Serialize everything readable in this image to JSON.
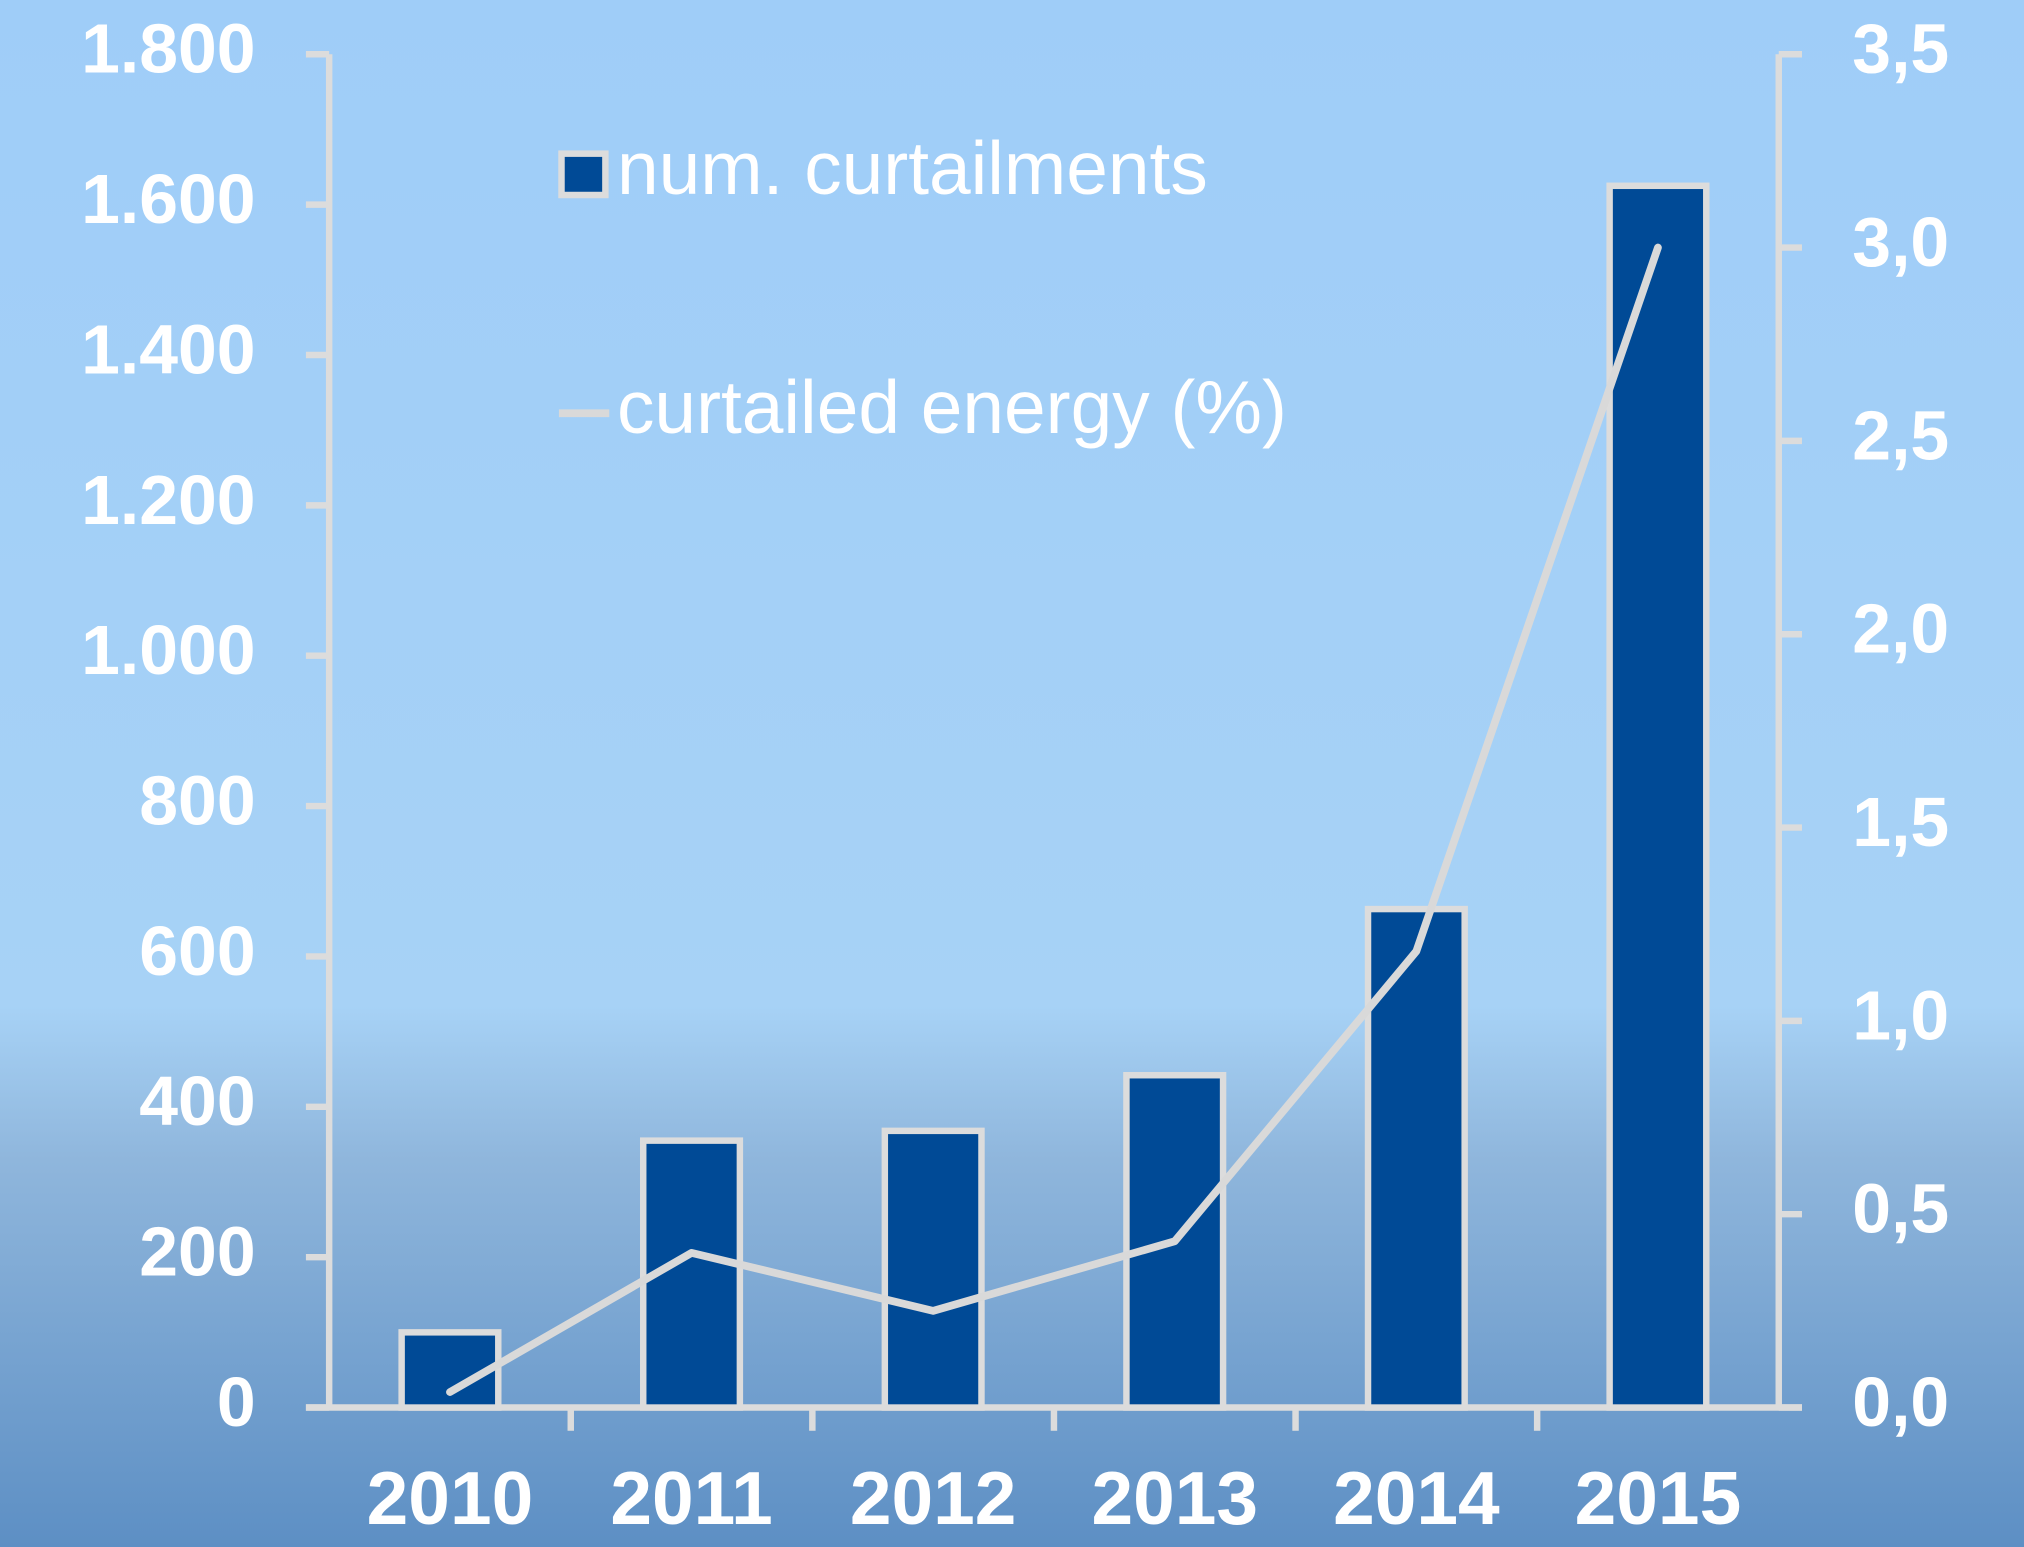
{
  "chart_data": {
    "type": "bar",
    "categories": [
      "2010",
      "2011",
      "2012",
      "2013",
      "2014",
      "2015"
    ],
    "series": [
      {
        "name": "num. curtailments",
        "type": "bar",
        "color": "#004a96",
        "values": [
          100,
          355,
          368,
          442,
          663,
          1625
        ]
      },
      {
        "name": "curtailed energy (%)",
        "type": "line",
        "axis": "y2",
        "color": "#d9d9d9",
        "values": [
          0.04,
          0.4,
          0.25,
          0.43,
          1.18,
          3.0
        ]
      }
    ],
    "ylim": [
      0,
      1800
    ],
    "yticks": [
      0,
      200,
      400,
      600,
      800,
      {
        "value": 1000,
        "label": "1.000"
      },
      {
        "value": 1200,
        "label": "1.200"
      },
      {
        "value": 1400,
        "label": "1.400"
      },
      {
        "value": 1600,
        "label": "1.600"
      },
      {
        "value": 1800,
        "label": "1.800"
      }
    ],
    "y2lim": [
      0,
      3.5
    ],
    "y2ticks": [
      {
        "value": 0,
        "label": "0,0"
      },
      {
        "value": 0.5,
        "label": "0,5"
      },
      {
        "value": 1,
        "label": "1,0"
      },
      {
        "value": 1.5,
        "label": "1,5"
      },
      {
        "value": 2,
        "label": "2,0"
      },
      {
        "value": 2.5,
        "label": "2,5"
      },
      {
        "value": 3,
        "label": "3,0"
      },
      {
        "value": 3.5,
        "label": "3,5"
      }
    ],
    "grid": false
  }
}
